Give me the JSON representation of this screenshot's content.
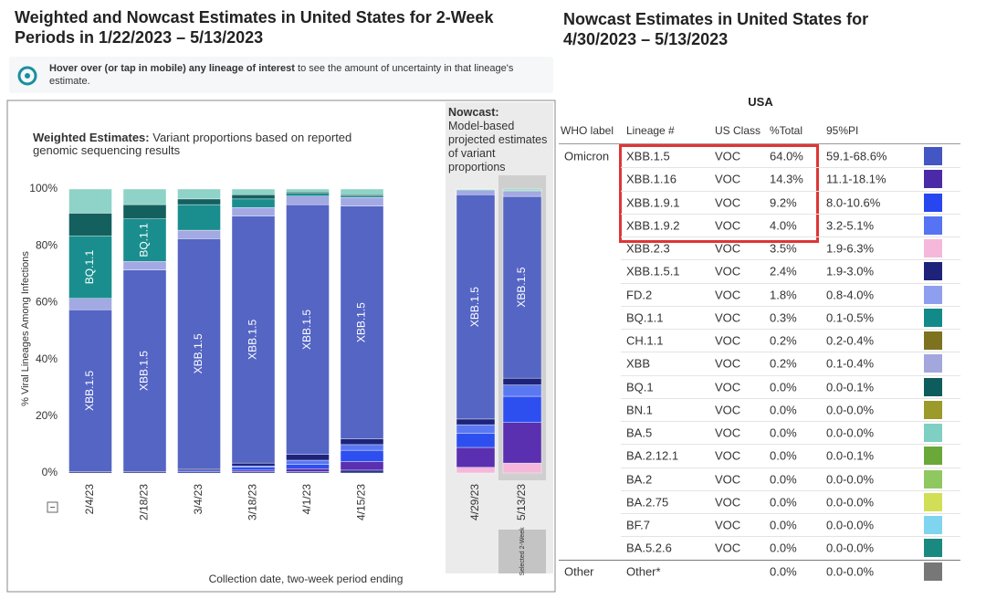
{
  "left_panel": {
    "title": "Weighted and Nowcast Estimates in United States for 2-Week Periods in 1/22/2023 – 5/13/2023",
    "info_bold": "Hover over (or tap in mobile) any lineage of interest",
    "info_text": "to see the amount of uncertainty in that lineage's estimate."
  },
  "chart_data": [
    {
      "type": "bar",
      "stacked": true,
      "title": "Weighted Estimates:",
      "subtitle": "Variant proportions based on reported genomic sequencing results",
      "y_label": "% Viral Lineages Among Infections",
      "x_label": "Collection date, two-week period ending",
      "categories": [
        "2/4/23",
        "2/18/23",
        "3/4/23",
        "3/18/23",
        "4/1/23",
        "4/15/23"
      ],
      "ylim": [
        0,
        100
      ],
      "yticks": [
        {
          "value": 0,
          "label": "0%"
        },
        {
          "value": 20,
          "label": "20%"
        },
        {
          "value": 40,
          "label": "40%"
        },
        {
          "value": 60,
          "label": "60%"
        },
        {
          "value": 80,
          "label": "80%"
        },
        {
          "value": 100,
          "label": "100%"
        }
      ],
      "series": [
        {
          "color": "#f5b8da",
          "values": [
            0,
            0,
            0,
            0,
            0,
            0
          ]
        },
        {
          "color": "#2b3590",
          "values": [
            0.5,
            0.5,
            0.5,
            0.5,
            0.5,
            1
          ]
        },
        {
          "color": "#5a2fb0",
          "values": [
            0,
            0,
            0,
            0.5,
            1,
            3
          ]
        },
        {
          "color": "#2e4ff0",
          "values": [
            0,
            0,
            0.5,
            1,
            1.5,
            4
          ]
        },
        {
          "color": "#5a78f2",
          "values": [
            0,
            0,
            0,
            0.5,
            1.5,
            2
          ]
        },
        {
          "color": "#1e237a",
          "values": [
            0,
            0,
            0.5,
            1,
            2,
            2
          ]
        },
        {
          "name": "XBB.1.5",
          "color": "#5465c4",
          "values": [
            57,
            71,
            81,
            87,
            88,
            82
          ]
        },
        {
          "color": "#a3a9e2",
          "values": [
            4,
            3,
            3,
            3,
            3,
            3
          ]
        },
        {
          "name": "BQ.1.1",
          "color": "#1a8e8e",
          "values": [
            22,
            15,
            9,
            3,
            1,
            0.5
          ]
        },
        {
          "color": "#14605f",
          "values": [
            8,
            5,
            2,
            1.5,
            0.5,
            0.5
          ]
        },
        {
          "color": "#8fd3c8",
          "values": [
            8.5,
            5.5,
            3.5,
            2,
            1,
            2
          ]
        }
      ]
    },
    {
      "type": "bar",
      "stacked": true,
      "title": "Nowcast:",
      "subtitle": "Model-based projected estimates of variant proportions",
      "categories": [
        "4/29/23",
        "5/13/23"
      ],
      "selected": 1,
      "selected_label": "Selected 2-Week",
      "ylim": [
        0,
        100
      ],
      "series": [
        {
          "color": "#f5b8da",
          "values": [
            2,
            3.5
          ]
        },
        {
          "color": "#2b3590",
          "values": [
            0,
            0
          ]
        },
        {
          "color": "#5a2fb0",
          "values": [
            7,
            14.3
          ]
        },
        {
          "color": "#2e4ff0",
          "values": [
            5,
            9.2
          ]
        },
        {
          "color": "#5a78f2",
          "values": [
            3,
            4
          ]
        },
        {
          "color": "#1e237a",
          "values": [
            2,
            2.4
          ]
        },
        {
          "name": "XBB.1.5",
          "color": "#5465c4",
          "values": [
            79,
            64
          ]
        },
        {
          "color": "#a3a9e2",
          "values": [
            1.5,
            1.8
          ]
        },
        {
          "name": "BQ.1.1",
          "color": "#1a8e8e",
          "values": [
            0.3,
            0.3
          ]
        },
        {
          "color": "#14605f",
          "values": [
            0,
            0
          ]
        },
        {
          "color": "#8fd3c8",
          "values": [
            0.2,
            0.5
          ]
        }
      ]
    }
  ],
  "table": {
    "title": "Nowcast Estimates in United States for 4/30/2023 – 5/13/2023",
    "region": "USA",
    "columns": [
      "WHO label",
      "Lineage #",
      "US Class",
      "%Total",
      "95%PI"
    ],
    "groups": [
      {
        "label": "Omicron",
        "rows": [
          {
            "lineage": "XBB.1.5",
            "class": "VOC",
            "total": "64.0%",
            "pi": "59.1-68.6%",
            "color": "#4356c4"
          },
          {
            "lineage": "XBB.1.16",
            "class": "VOC",
            "total": "14.3%",
            "pi": "11.1-18.1%",
            "color": "#4b2aa8"
          },
          {
            "lineage": "XBB.1.9.1",
            "class": "VOC",
            "total": "9.2%",
            "pi": "8.0-10.6%",
            "color": "#2746f0"
          },
          {
            "lineage": "XBB.1.9.2",
            "class": "VOC",
            "total": "4.0%",
            "pi": "3.2-5.1%",
            "color": "#5573f2"
          },
          {
            "lineage": "XBB.2.3",
            "class": "VOC",
            "total": "3.5%",
            "pi": "1.9-6.3%",
            "color": "#f5b8da"
          },
          {
            "lineage": "XBB.1.5.1",
            "class": "VOC",
            "total": "2.4%",
            "pi": "1.9-3.0%",
            "color": "#1e237a"
          },
          {
            "lineage": "FD.2",
            "class": "VOC",
            "total": "1.8%",
            "pi": "0.8-4.0%",
            "color": "#8f9ff0"
          },
          {
            "lineage": "BQ.1.1",
            "class": "VOC",
            "total": "0.3%",
            "pi": "0.1-0.5%",
            "color": "#138a8a"
          },
          {
            "lineage": "CH.1.1",
            "class": "VOC",
            "total": "0.2%",
            "pi": "0.2-0.4%",
            "color": "#7d7220"
          },
          {
            "lineage": "XBB",
            "class": "VOC",
            "total": "0.2%",
            "pi": "0.1-0.4%",
            "color": "#a3a7dd"
          },
          {
            "lineage": "BQ.1",
            "class": "VOC",
            "total": "0.0%",
            "pi": "0.0-0.1%",
            "color": "#0e5c5c"
          },
          {
            "lineage": "BN.1",
            "class": "VOC",
            "total": "0.0%",
            "pi": "0.0-0.0%",
            "color": "#9c9a2a"
          },
          {
            "lineage": "BA.5",
            "class": "VOC",
            "total": "0.0%",
            "pi": "0.0-0.0%",
            "color": "#7fcfc3"
          },
          {
            "lineage": "BA.2.12.1",
            "class": "VOC",
            "total": "0.0%",
            "pi": "0.0-0.1%",
            "color": "#6aa83a"
          },
          {
            "lineage": "BA.2",
            "class": "VOC",
            "total": "0.0%",
            "pi": "0.0-0.0%",
            "color": "#90c860"
          },
          {
            "lineage": "BA.2.75",
            "class": "VOC",
            "total": "0.0%",
            "pi": "0.0-0.0%",
            "color": "#d0df55"
          },
          {
            "lineage": "BF.7",
            "class": "VOC",
            "total": "0.0%",
            "pi": "0.0-0.0%",
            "color": "#7fd4f0"
          },
          {
            "lineage": "BA.5.2.6",
            "class": "VOC",
            "total": "0.0%",
            "pi": "0.0-0.0%",
            "color": "#1a8a80"
          }
        ]
      },
      {
        "label": "Other",
        "rows": [
          {
            "lineage": "Other*",
            "total": "0.0%",
            "pi": "0.0-0.0%",
            "color": "#777777"
          }
        ]
      }
    ]
  }
}
